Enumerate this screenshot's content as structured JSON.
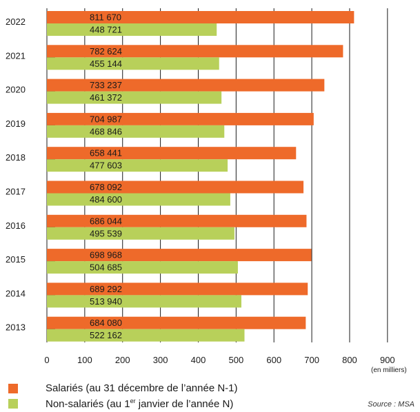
{
  "chart_data": {
    "type": "bar",
    "orientation": "horizontal",
    "categories": [
      "2022",
      "2021",
      "2020",
      "2019",
      "2018",
      "2017",
      "2016",
      "2015",
      "2014",
      "2013"
    ],
    "series": [
      {
        "name": "Salariés (au 31 décembre de l’année N-1)",
        "color": "#ee6a2a",
        "values": [
          811.67,
          782.624,
          733.237,
          704.987,
          658.441,
          678.092,
          686.044,
          698.968,
          689.292,
          684.08
        ],
        "labels": [
          "811 670",
          "782 624",
          "733 237",
          "704 987",
          "658 441",
          "678 092",
          "686 044",
          "698 968",
          "689 292",
          "684 080"
        ]
      },
      {
        "name": "Non-salariés (au 1er janvier de l’année N)",
        "color": "#b8d05a",
        "values": [
          448.721,
          455.144,
          461.372,
          468.846,
          477.603,
          484.6,
          495.539,
          504.685,
          513.94,
          522.162
        ],
        "labels": [
          "448 721",
          "455 144",
          "461 372",
          "468 846",
          "477 603",
          "484 600",
          "495 539",
          "504 685",
          "513 940",
          "522 162"
        ]
      }
    ],
    "xlim": [
      0,
      900
    ],
    "xticks": [
      "0",
      "100",
      "200",
      "300",
      "400",
      "500",
      "600",
      "700",
      "800",
      "900"
    ],
    "xlabel": "(en milliers)",
    "grid": true,
    "legend_position": "bottom"
  },
  "legend": {
    "salaries": {
      "text": "Salariés (au 31 décembre de l’année N-1)",
      "color": "#ee6a2a"
    },
    "non_salaries": {
      "text_before": "Non-salariés (au 1",
      "sup": "er",
      "text_after": " janvier de l’année N)",
      "color": "#b8d05a"
    }
  },
  "source": "Source : MSA"
}
